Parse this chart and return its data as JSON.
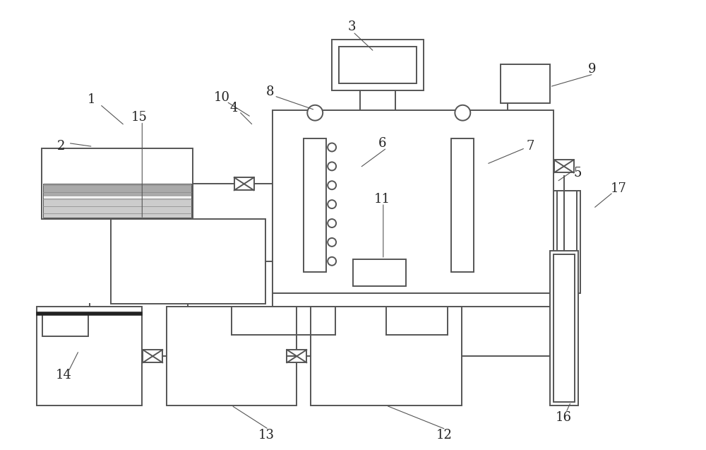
{
  "bg_color": "#ffffff",
  "lc": "#555555",
  "lw": 1.4,
  "figsize": [
    10.0,
    6.37
  ],
  "dpi": 100
}
